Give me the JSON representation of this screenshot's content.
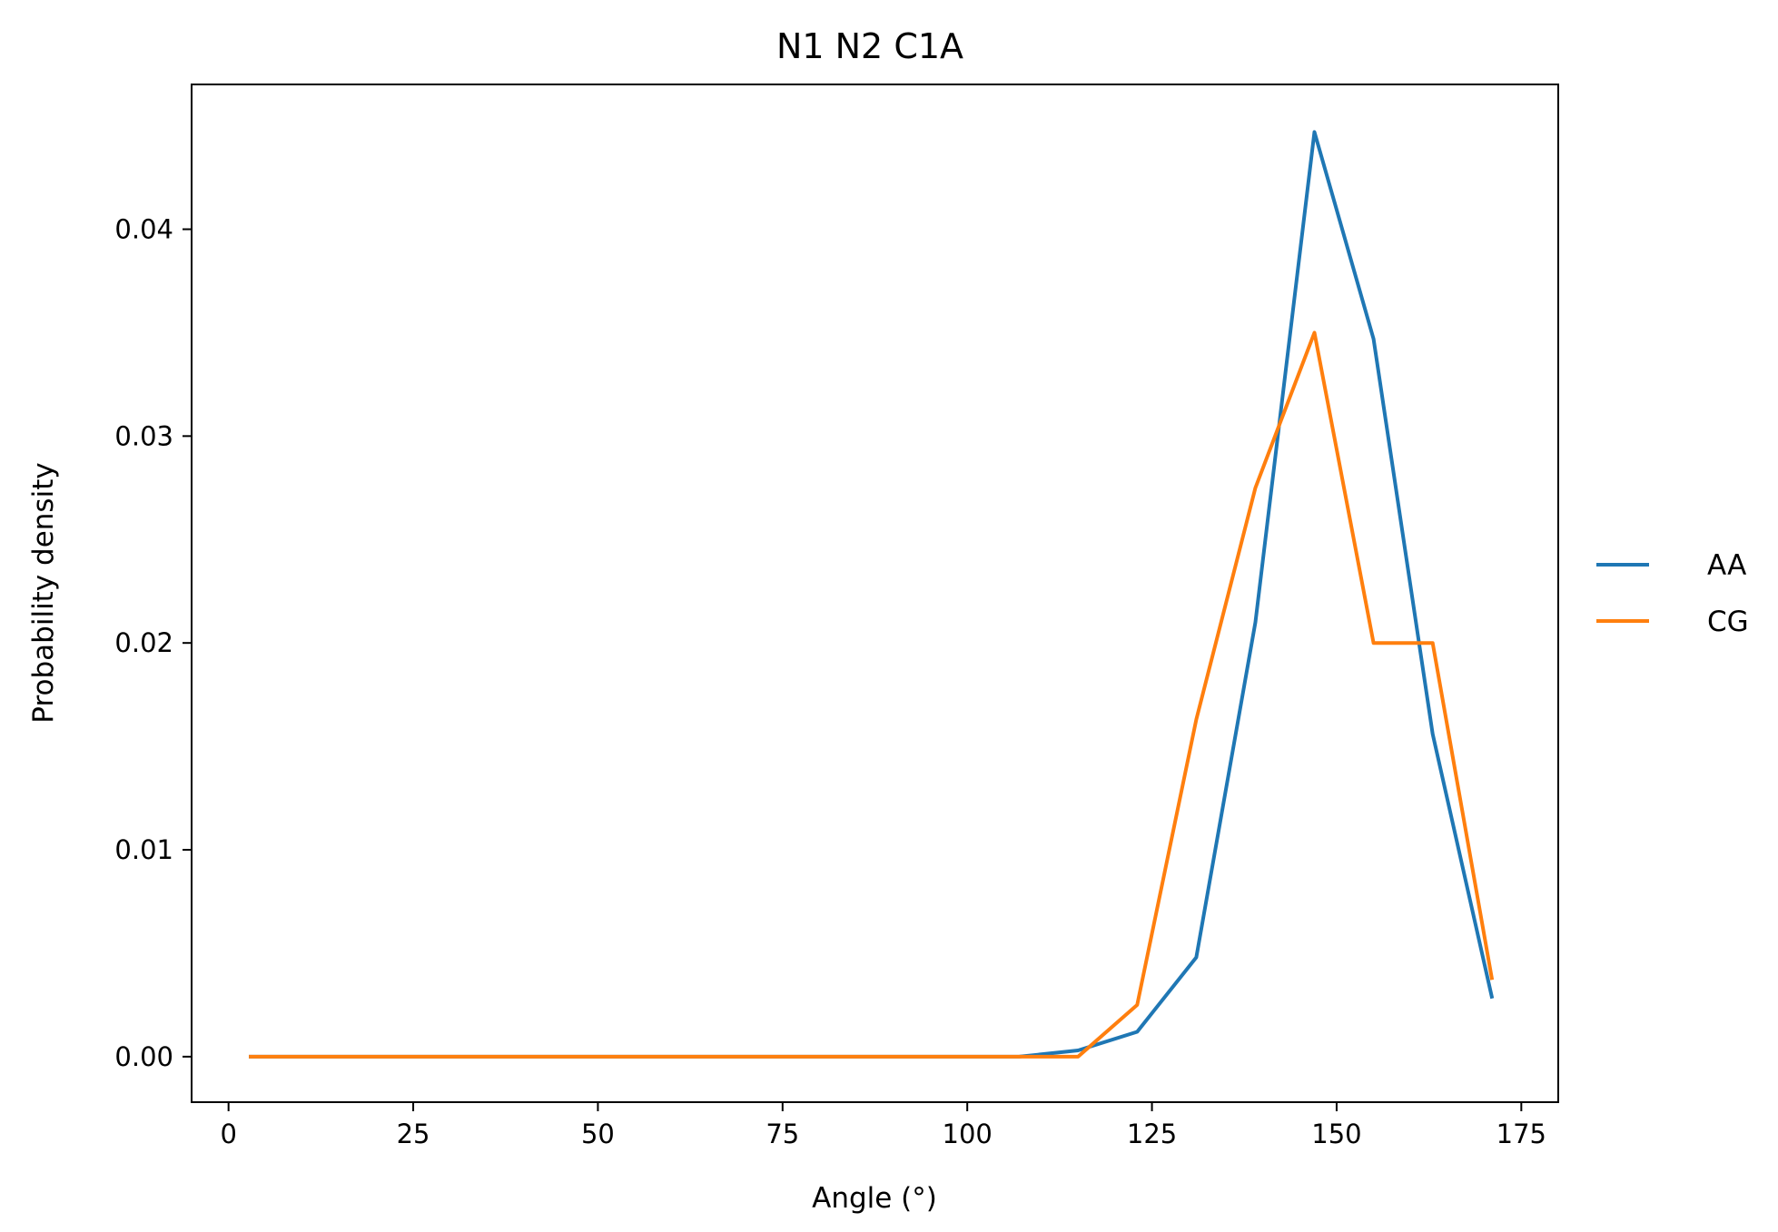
{
  "chart_data": {
    "type": "line",
    "title": "N1 N2 C1A",
    "xlabel": "Angle (°)",
    "ylabel": "Probability density",
    "xlim": [
      -5,
      180
    ],
    "ylim": [
      -0.0022,
      0.047
    ],
    "xticks": [
      0,
      25,
      50,
      75,
      100,
      125,
      150,
      175
    ],
    "xtick_labels": [
      "0",
      "25",
      "50",
      "75",
      "100",
      "125",
      "150",
      "175"
    ],
    "yticks": [
      0,
      0.01,
      0.02,
      0.03,
      0.04
    ],
    "ytick_labels": [
      "0.00",
      "0.01",
      "0.02",
      "0.03",
      "0.04"
    ],
    "grid": false,
    "legend_position": "right-outside",
    "x": [
      3,
      11,
      19,
      27,
      35,
      43,
      51,
      59,
      67,
      75,
      83,
      91,
      99,
      107,
      115,
      123,
      131,
      139,
      147,
      155,
      163,
      171
    ],
    "series": [
      {
        "name": "AA",
        "color": "#1f77b4",
        "values": [
          0,
          0,
          0,
          0,
          0,
          0,
          0,
          0,
          0,
          0,
          0,
          0,
          0,
          0,
          0.0003,
          0.0012,
          0.0048,
          0.021,
          0.0447,
          0.0347,
          0.0156,
          0.0029
        ]
      },
      {
        "name": "CG",
        "color": "#ff7f0e",
        "values": [
          0,
          0,
          0,
          0,
          0,
          0,
          0,
          0,
          0,
          0,
          0,
          0,
          0,
          0,
          0,
          0.0025,
          0.0163,
          0.0275,
          0.035,
          0.02,
          0.02,
          0.0038
        ]
      }
    ]
  }
}
